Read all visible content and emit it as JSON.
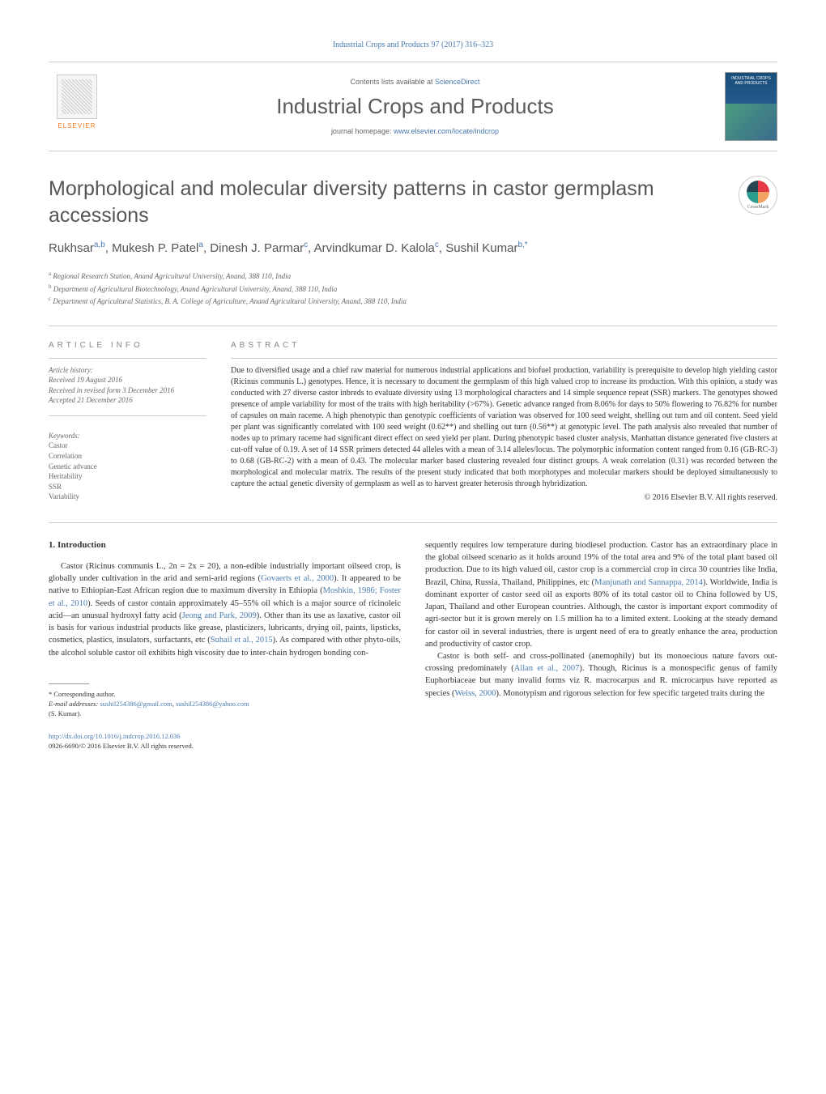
{
  "header": {
    "citation": "Industrial Crops and Products 97 (2017) 316–323",
    "contents_line_prefix": "Contents lists available at ",
    "contents_link": "ScienceDirect",
    "journal_name": "Industrial Crops and Products",
    "homepage_prefix": "journal homepage: ",
    "homepage_link": "www.elsevier.com/locate/indcrop",
    "elsevier_label": "ELSEVIER",
    "cover_text": "INDUSTRIAL CROPS AND PRODUCTS",
    "crossmark_label": "CrossMark"
  },
  "article": {
    "title": "Morphological and molecular diversity patterns in castor germplasm accessions",
    "authors_html": "Rukhsar<sup>a,b</sup>, Mukesh P. Patel<sup>a</sup>, Dinesh J. Parmar<sup>c</sup>, Arvindkumar D. Kalola<sup>c</sup>, Sushil Kumar<sup>b,*</sup>",
    "affiliations": [
      {
        "sup": "a",
        "text": "Regional Research Station, Anand Agricultural University, Anand, 388 110, India"
      },
      {
        "sup": "b",
        "text": "Department of Agricultural Biotechnology, Anand Agricultural University, Anand, 388 110, India"
      },
      {
        "sup": "c",
        "text": "Department of Agricultural Statistics, B. A. College of Agriculture, Anand Agricultural University, Anand, 388 110, India"
      }
    ]
  },
  "info": {
    "section_label": "ARTICLE INFO",
    "history_label": "Article history:",
    "received": "Received 19 August 2016",
    "revised": "Received in revised form 3 December 2016",
    "accepted": "Accepted 21 December 2016",
    "keywords_label": "Keywords:",
    "keywords": [
      "Castor",
      "Correlation",
      "Genetic advance",
      "Heritability",
      "SSR",
      "Variability"
    ]
  },
  "abstract": {
    "section_label": "ABSTRACT",
    "text": "Due to diversified usage and a chief raw material for numerous industrial applications and biofuel production, variability is prerequisite to develop high yielding castor (Ricinus communis L.) genotypes. Hence, it is necessary to document the germplasm of this high valued crop to increase its production. With this opinion, a study was conducted with 27 diverse castor inbreds to evaluate diversity using 13 morphological characters and 14 simple sequence repeat (SSR) markers. The genotypes showed presence of ample variability for most of the traits with high heritability (>67%). Genetic advance ranged from 8.06% for days to 50% flowering to 76.82% for number of capsules on main raceme. A high phenotypic than genotypic coefficients of variation was observed for 100 seed weight, shelling out turn and oil content. Seed yield per plant was significantly correlated with 100 seed weight (0.62**) and shelling out turn (0.56**) at genotypic level. The path analysis also revealed that number of nodes up to primary raceme had significant direct effect on seed yield per plant. During phenotypic based cluster analysis, Manhattan distance generated five clusters at cut-off value of 0.19. A set of 14 SSR primers detected 44 alleles with a mean of 3.14 alleles/locus. The polymorphic information content ranged from 0.16 (GB-RC-3) to 0.68 (GB-RC-2) with a mean of 0.43. The molecular marker based clustering revealed four distinct groups. A weak correlation (0.31) was recorded between the morphological and molecular matrix. The results of the present study indicated that both morphotypes and molecular markers should be deployed simultaneously to capture the actual genetic diversity of germplasm as well as to harvest greater heterosis through hybridization.",
    "copyright": "© 2016 Elsevier B.V. All rights reserved."
  },
  "body": {
    "section_heading": "1. Introduction",
    "col1_p1_pre": "Castor (Ricinus communis L., 2n = 2x = 20), a non-edible industrially important oilseed crop, is globally under cultivation in the arid and semi-arid regions (",
    "col1_ref1": "Govaerts et al., 2000",
    "col1_p1_mid1": "). It appeared to be native to Ethiopian-East African region due to maximum diversity in Ethiopia (",
    "col1_ref2": "Moshkin, 1986; Foster et al., 2010",
    "col1_p1_mid2": "). Seeds of castor contain approximately 45–55% oil which is a major source of ricinoleic acid—an unusual hydroxyl fatty acid (",
    "col1_ref3": "Jeong and Park, 2009",
    "col1_p1_mid3": "). Other than its use as laxative, castor oil is basis for various industrial products like grease, plasticizers, lubricants, drying oil, paints, lipsticks, cosmetics, plastics, insulators, surfactants, etc (",
    "col1_ref4": "Suhail et al., 2015",
    "col1_p1_post": "). As compared with other phyto-oils, the alcohol soluble castor oil exhibits high viscosity due to inter-chain hydrogen bonding con-",
    "col2_p1_pre": "sequently requires low temperature during biodiesel production. Castor has an extraordinary place in the global oilseed scenario as it holds around 19% of the total area and 9% of the total plant based oil production. Due to its high valued oil, castor crop is a commercial crop in circa 30 countries like India, Brazil, China, Russia, Thailand, Philippines, etc (",
    "col2_ref1": "Manjunath and Sannappa, 2014",
    "col2_p1_post": "). Worldwide, India is dominant exporter of castor seed oil as exports 80% of its total castor oil to China followed by US, Japan, Thailand and other European countries. Although, the castor is important export commodity of agri-sector but it is grown merely on 1.5 million ha to a limited extent. Looking at the steady demand for castor oil in several industries, there is urgent need of era to greatly enhance the area, production and productivity of castor crop.",
    "col2_p2_pre": "Castor is both self- and cross-pollinated (anemophily) but its monoecious nature favors out-crossing predominately (",
    "col2_ref2": "Allan et al., 2007",
    "col2_p2_mid": "). Though, Ricinus is a monospecific genus of family Euphorbiaceae but many invalid forms viz R. macrocarpus and R. microcarpus have reported as species (",
    "col2_ref3": "Weiss, 2000",
    "col2_p2_post": "). Monotypism and rigorous selection for few specific targeted traits during the"
  },
  "footer": {
    "corr_label": "* Corresponding author.",
    "email_label": "E-mail addresses: ",
    "email1": "sushil254386@gmail.com",
    "email_sep": ", ",
    "email2": "sushil254386@yahoo.com",
    "email_author": "(S. Kumar).",
    "doi": "http://dx.doi.org/10.1016/j.indcrop.2016.12.036",
    "issn": "0926-6690/© 2016 Elsevier B.V. All rights reserved."
  },
  "colors": {
    "link": "#4a7bb0",
    "accent": "#f47920"
  }
}
